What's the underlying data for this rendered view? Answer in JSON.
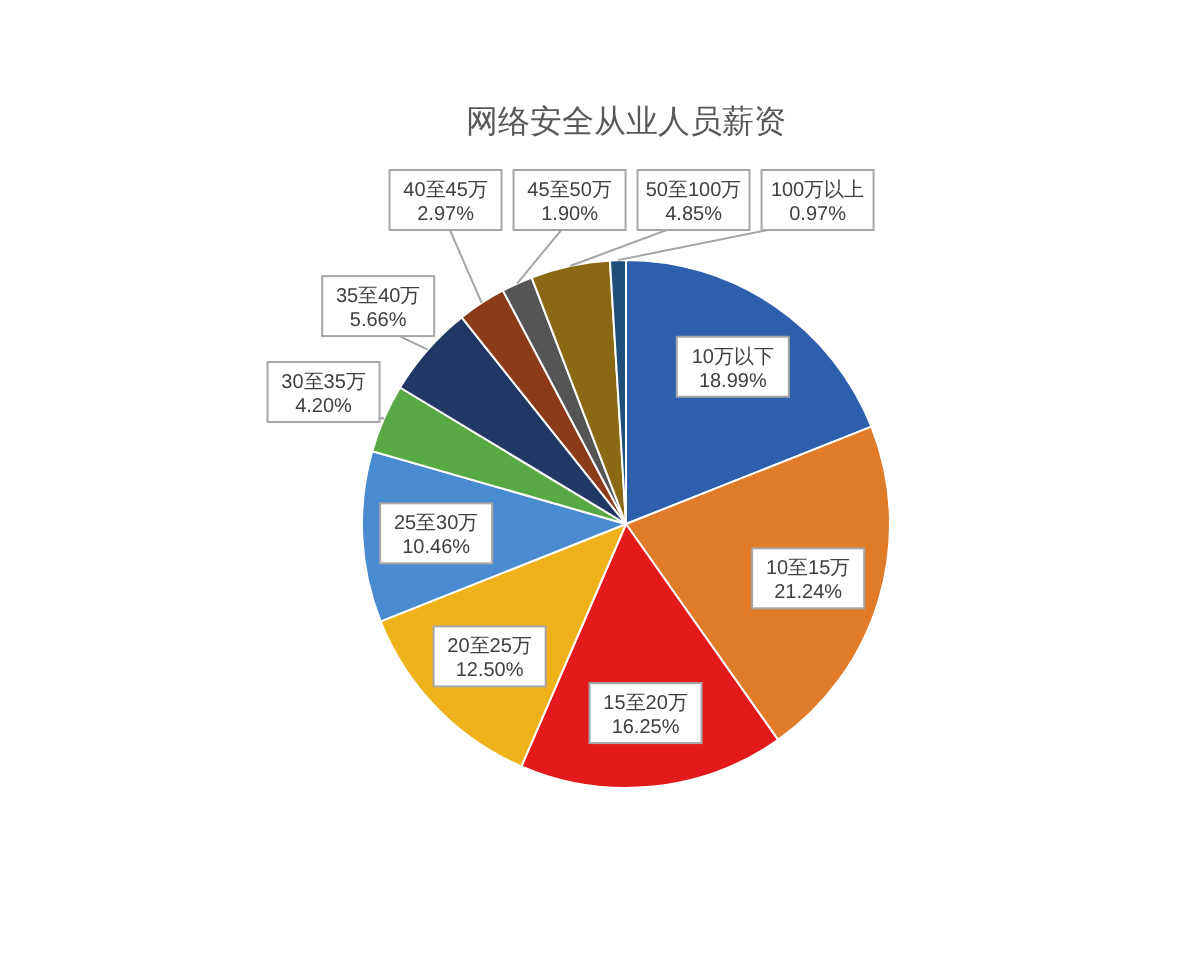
{
  "chart_data": {
    "type": "pie",
    "title": "网络安全从业人员薪资",
    "categories": [
      "10万以下",
      "10至15万",
      "15至20万",
      "20至25万",
      "25至30万",
      "30至35万",
      "35至40万",
      "40至45万",
      "45至50万",
      "50至100万",
      "100万以上"
    ],
    "values": [
      18.99,
      21.24,
      16.25,
      12.5,
      10.46,
      4.2,
      5.66,
      2.97,
      1.9,
      4.85,
      0.97
    ],
    "value_labels": [
      "18.99%",
      "21.24%",
      "16.25%",
      "12.50%",
      "10.46%",
      "4.20%",
      "5.66%",
      "2.97%",
      "1.90%",
      "4.85%",
      "0.97%"
    ],
    "colors": [
      "#2e5fad",
      "#e07b2a",
      "#e31a1c",
      "#f0b21a",
      "#4a8ad0",
      "#58a843",
      "#1f3864",
      "#8b3a1a",
      "#555555",
      "#8b6914",
      "#1f4e79"
    ]
  }
}
